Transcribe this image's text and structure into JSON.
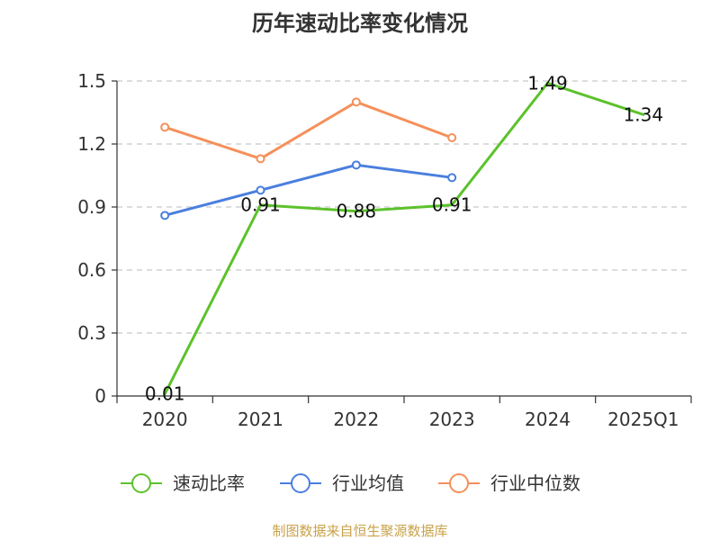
{
  "chart_data": {
    "type": "line",
    "title": "历年速动比率变化情况",
    "categories": [
      "2020",
      "2021",
      "2022",
      "2023",
      "2024",
      "2025Q1"
    ],
    "y_ticks": [
      "0",
      "0.3",
      "0.6",
      "0.9",
      "1.2",
      "1.5"
    ],
    "ylim": [
      0,
      1.5
    ],
    "grid": "horizontal dashed",
    "legend_position": "bottom",
    "series": [
      {
        "name": "速动比率",
        "color": "#5cc22b",
        "values": [
          0.01,
          0.91,
          0.88,
          0.91,
          1.49,
          1.34
        ],
        "labels": [
          "0.01",
          "0.91",
          "0.88",
          "0.91",
          "1.49",
          "1.34"
        ],
        "show_labels": true,
        "show_markers": false
      },
      {
        "name": "行业均值",
        "color": "#4a7fde",
        "values": [
          0.86,
          0.98,
          1.1,
          1.04,
          null,
          null
        ],
        "show_labels": false,
        "show_markers": true
      },
      {
        "name": "行业中位数",
        "color": "#f5905a",
        "values": [
          1.28,
          1.13,
          1.4,
          1.23,
          null,
          null
        ],
        "show_labels": false,
        "show_markers": true
      }
    ]
  },
  "footer": {
    "source": "制图数据来自恒生聚源数据库"
  }
}
